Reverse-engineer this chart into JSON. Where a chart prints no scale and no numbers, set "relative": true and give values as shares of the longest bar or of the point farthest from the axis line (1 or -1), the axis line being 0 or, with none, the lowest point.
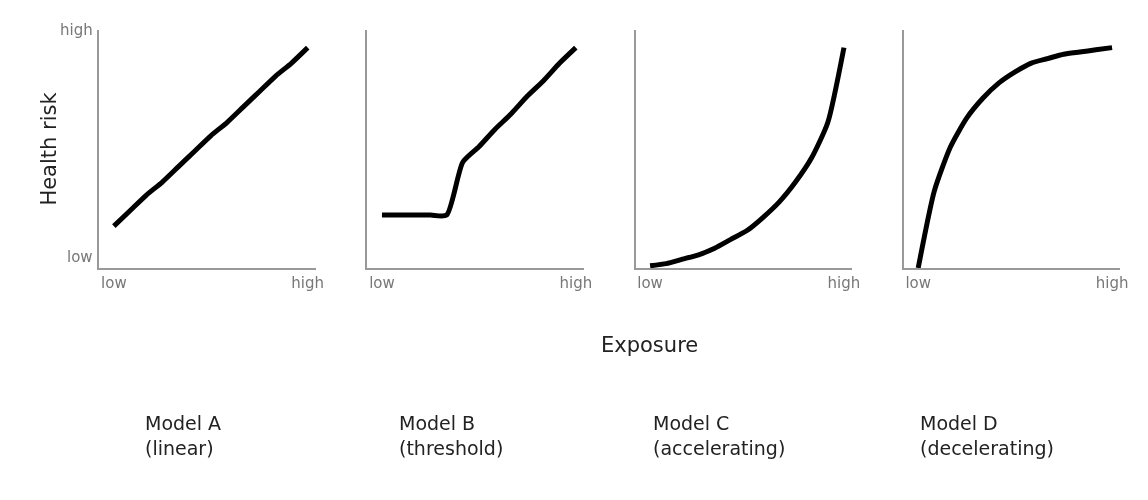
{
  "chart_data": [
    {
      "type": "line",
      "relative": true,
      "title": "Model A\n(linear)",
      "ylabel": "Health risk",
      "annotations": [
        "low",
        "high"
      ],
      "categories": [
        "low",
        null,
        null,
        null,
        null,
        null,
        null,
        null,
        null,
        null,
        null,
        null,
        "high"
      ],
      "series": [
        {
          "color": "#000000",
          "values": [
            0.19,
            0.26,
            0.33,
            0.39,
            0.46,
            0.53,
            0.6,
            0.66,
            0.73,
            0.8,
            0.87,
            0.93,
            1.0
          ]
        }
      ],
      "marker": "none",
      "line_style": "solid"
    },
    {
      "type": "line",
      "relative": true,
      "title": "Model B\n(threshold)",
      "annotations": [
        "Exposure"
      ],
      "categories": [
        "low",
        null,
        null,
        null,
        null,
        null,
        null,
        null,
        null,
        null,
        null,
        null,
        "high"
      ],
      "series": [
        {
          "color": "#000000",
          "values": [
            0.24,
            0.24,
            0.24,
            0.24,
            0.24,
            0.48,
            0.55,
            0.63,
            0.7,
            0.78,
            0.85,
            0.93,
            1.0
          ]
        }
      ],
      "marker": "none",
      "line_style": "solid"
    },
    {
      "type": "line",
      "relative": true,
      "title": "Model C\n(accelerating)",
      "categories": [
        "low",
        null,
        null,
        null,
        null,
        null,
        null,
        null,
        null,
        null,
        null,
        null,
        "high"
      ],
      "series": [
        {
          "color": "#000000",
          "values": [
            0.01,
            0.02,
            0.04,
            0.06,
            0.09,
            0.13,
            0.17,
            0.23,
            0.3,
            0.39,
            0.5,
            0.66,
            1.0
          ]
        }
      ],
      "marker": "none",
      "line_style": "solid"
    },
    {
      "type": "line",
      "relative": true,
      "title": "Model D\n(decelerating)",
      "categories": [
        "low",
        null,
        null,
        null,
        null,
        null,
        null,
        null,
        null,
        null,
        null,
        null,
        "high"
      ],
      "series": [
        {
          "color": "#000000",
          "values": [
            0.0,
            0.35,
            0.55,
            0.68,
            0.77,
            0.84,
            0.89,
            0.93,
            0.95,
            0.97,
            0.98,
            0.99,
            1.0
          ]
        }
      ],
      "marker": "none",
      "line_style": "solid"
    }
  ]
}
